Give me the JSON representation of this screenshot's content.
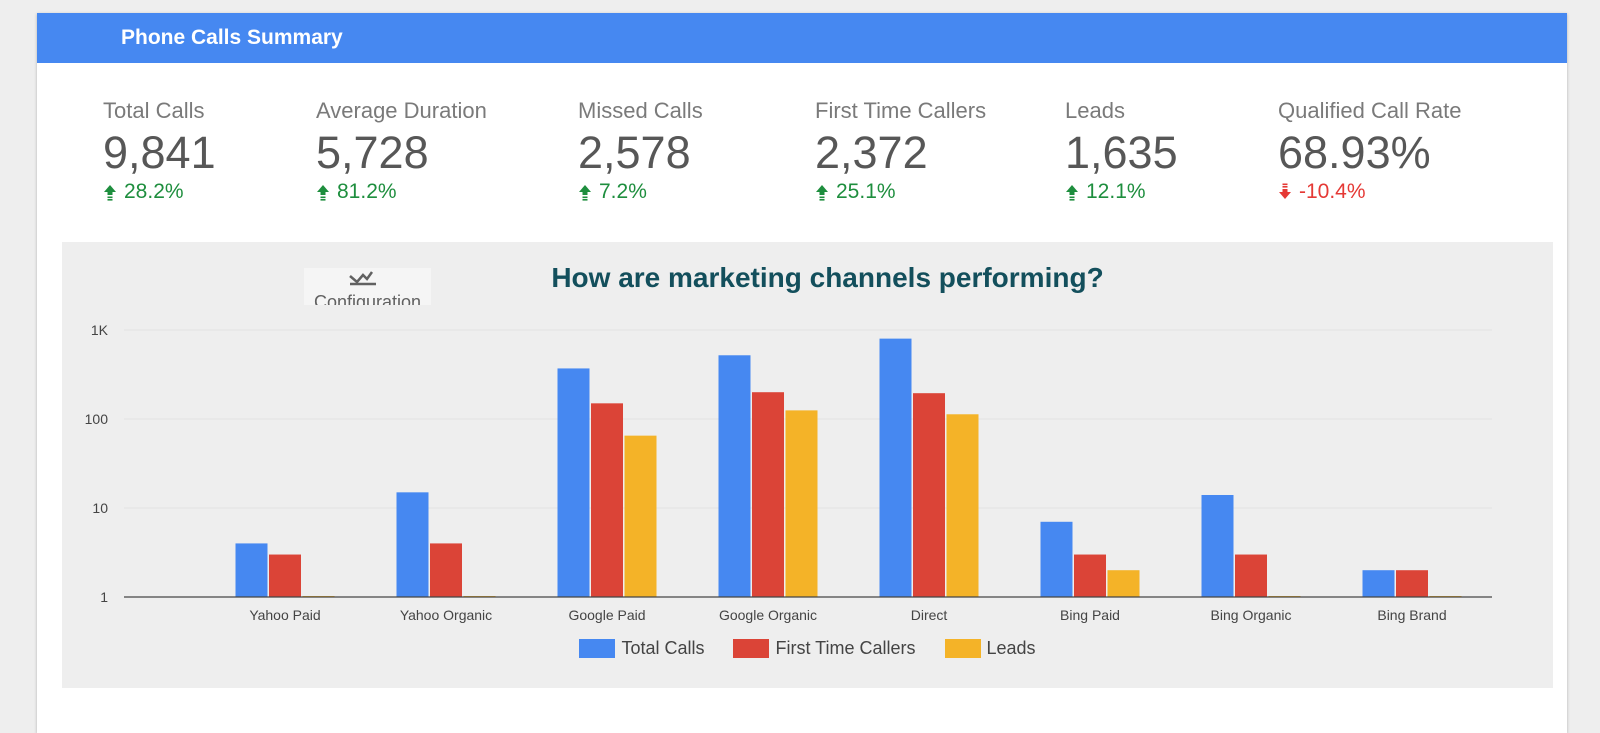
{
  "header": {
    "title": "Phone Calls Summary",
    "color": "#4688f1"
  },
  "kpis": [
    {
      "label": "Total Calls",
      "value": "9,841",
      "delta": "28.2%",
      "trend": "up"
    },
    {
      "label": "Average Duration",
      "value": "5,728",
      "delta": "81.2%",
      "trend": "up"
    },
    {
      "label": "Missed Calls",
      "value": "2,578",
      "delta": "7.2%",
      "trend": "up"
    },
    {
      "label": "First Time Callers",
      "value": "2,372",
      "delta": "25.1%",
      "trend": "up"
    },
    {
      "label": "Leads",
      "value": "1,635",
      "delta": "12.1%",
      "trend": "up"
    },
    {
      "label": "Qualified Call Rate",
      "value": "68.93%",
      "delta": "-10.4%",
      "trend": "down"
    }
  ],
  "config": {
    "label": "Configuration",
    "icon": "chart-edit-icon"
  },
  "chart_data": {
    "type": "bar",
    "title": "How are marketing channels performing?",
    "scale": "log",
    "ylim": [
      1,
      1000
    ],
    "yticks": [
      {
        "value": 1,
        "label": "1"
      },
      {
        "value": 10,
        "label": "10"
      },
      {
        "value": 100,
        "label": "100"
      },
      {
        "value": 1000,
        "label": "1K"
      }
    ],
    "categories": [
      "Yahoo Paid",
      "Yahoo Organic",
      "Google Paid",
      "Google Organic",
      "Direct",
      "Bing Paid",
      "Bing Organic",
      "Bing Brand"
    ],
    "series": [
      {
        "name": "Total Calls",
        "color": "#4688f1",
        "values": [
          4,
          15,
          370,
          520,
          800,
          7,
          14,
          2
        ]
      },
      {
        "name": "First Time Callers",
        "color": "#db4437",
        "values": [
          3,
          4,
          150,
          200,
          195,
          3,
          3,
          2
        ]
      },
      {
        "name": "Leads",
        "color": "#f4b328",
        "values": [
          0,
          0,
          65,
          125,
          113,
          2,
          0,
          0
        ]
      }
    ],
    "grid": true,
    "legend_position": "bottom"
  }
}
